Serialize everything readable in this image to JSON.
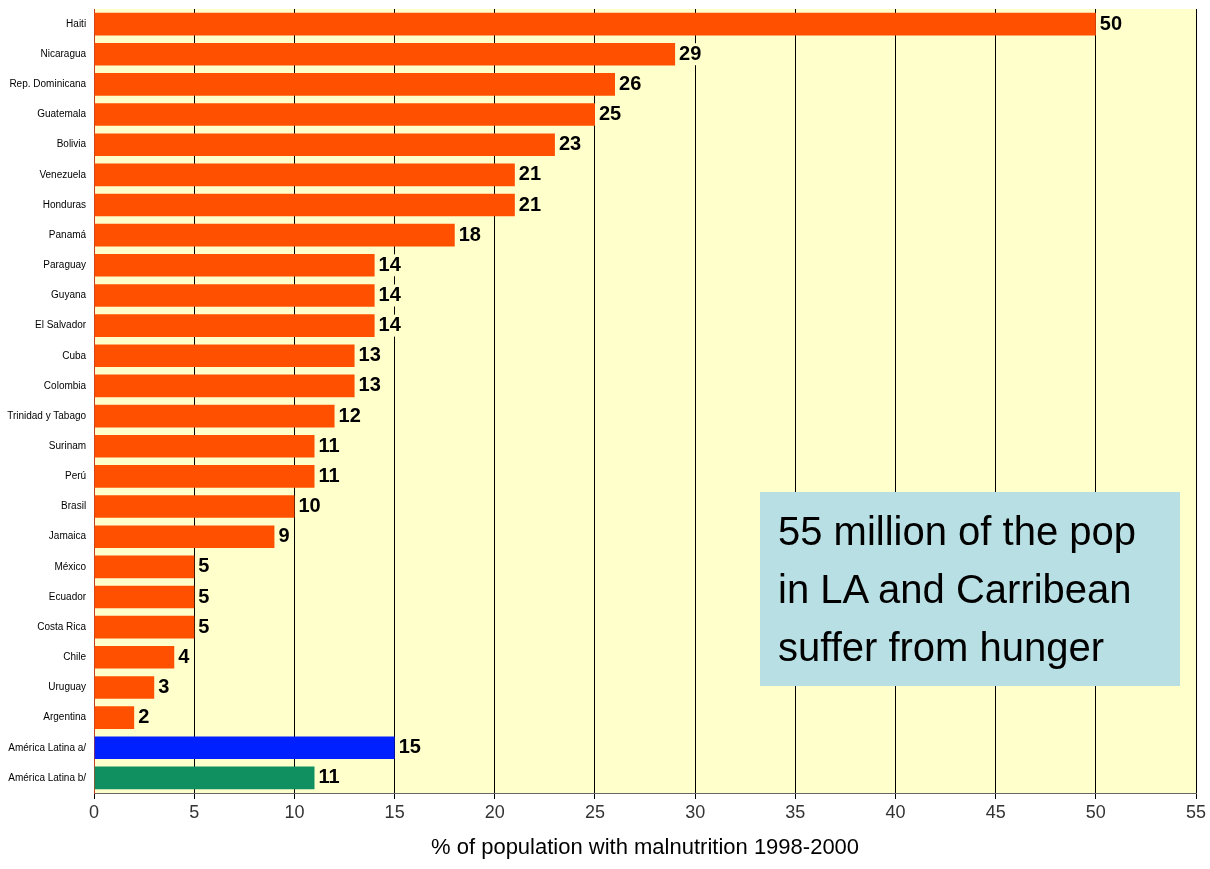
{
  "chart_data": {
    "type": "bar",
    "orientation": "horizontal",
    "xlabel": "% of population with malnutrition 1998-2000",
    "categories": [
      "Haiti",
      "Nicaragua",
      "Rep. Dominicana",
      "Guatemala",
      "Bolivia",
      "Venezuela",
      "Honduras",
      "Panamá",
      "Paraguay",
      "Guyana",
      "El Salvador",
      "Cuba",
      "Colombia",
      "Trinidad y Tabago",
      "Surinam",
      "Perú",
      "Brasil",
      "Jamaica",
      "México",
      "Ecuador",
      "Costa Rica",
      "Chile",
      "Uruguay",
      "Argentina",
      "América Latina a/",
      "América Latina b/"
    ],
    "values": [
      50,
      29,
      26,
      25,
      23,
      21,
      21,
      18,
      14,
      14,
      14,
      13,
      13,
      12,
      11,
      11,
      10,
      9,
      5,
      5,
      5,
      4,
      3,
      2,
      15,
      11
    ],
    "colors": [
      "#ff5000",
      "#ff5000",
      "#ff5000",
      "#ff5000",
      "#ff5000",
      "#ff5000",
      "#ff5000",
      "#ff5000",
      "#ff5000",
      "#ff5000",
      "#ff5000",
      "#ff5000",
      "#ff5000",
      "#ff5000",
      "#ff5000",
      "#ff5000",
      "#ff5000",
      "#ff5000",
      "#ff5000",
      "#ff5000",
      "#ff5000",
      "#ff5000",
      "#ff5000",
      "#ff5000",
      "#0020ff",
      "#109060"
    ],
    "xlim": [
      0,
      55
    ],
    "xticks": [
      0,
      5,
      10,
      15,
      20,
      25,
      30,
      35,
      40,
      45,
      50,
      55
    ],
    "grid": "x",
    "data_labels": true,
    "legend": false,
    "annotations": [
      "55 million of the pop in LA and Carribean suffer from hunger"
    ]
  }
}
